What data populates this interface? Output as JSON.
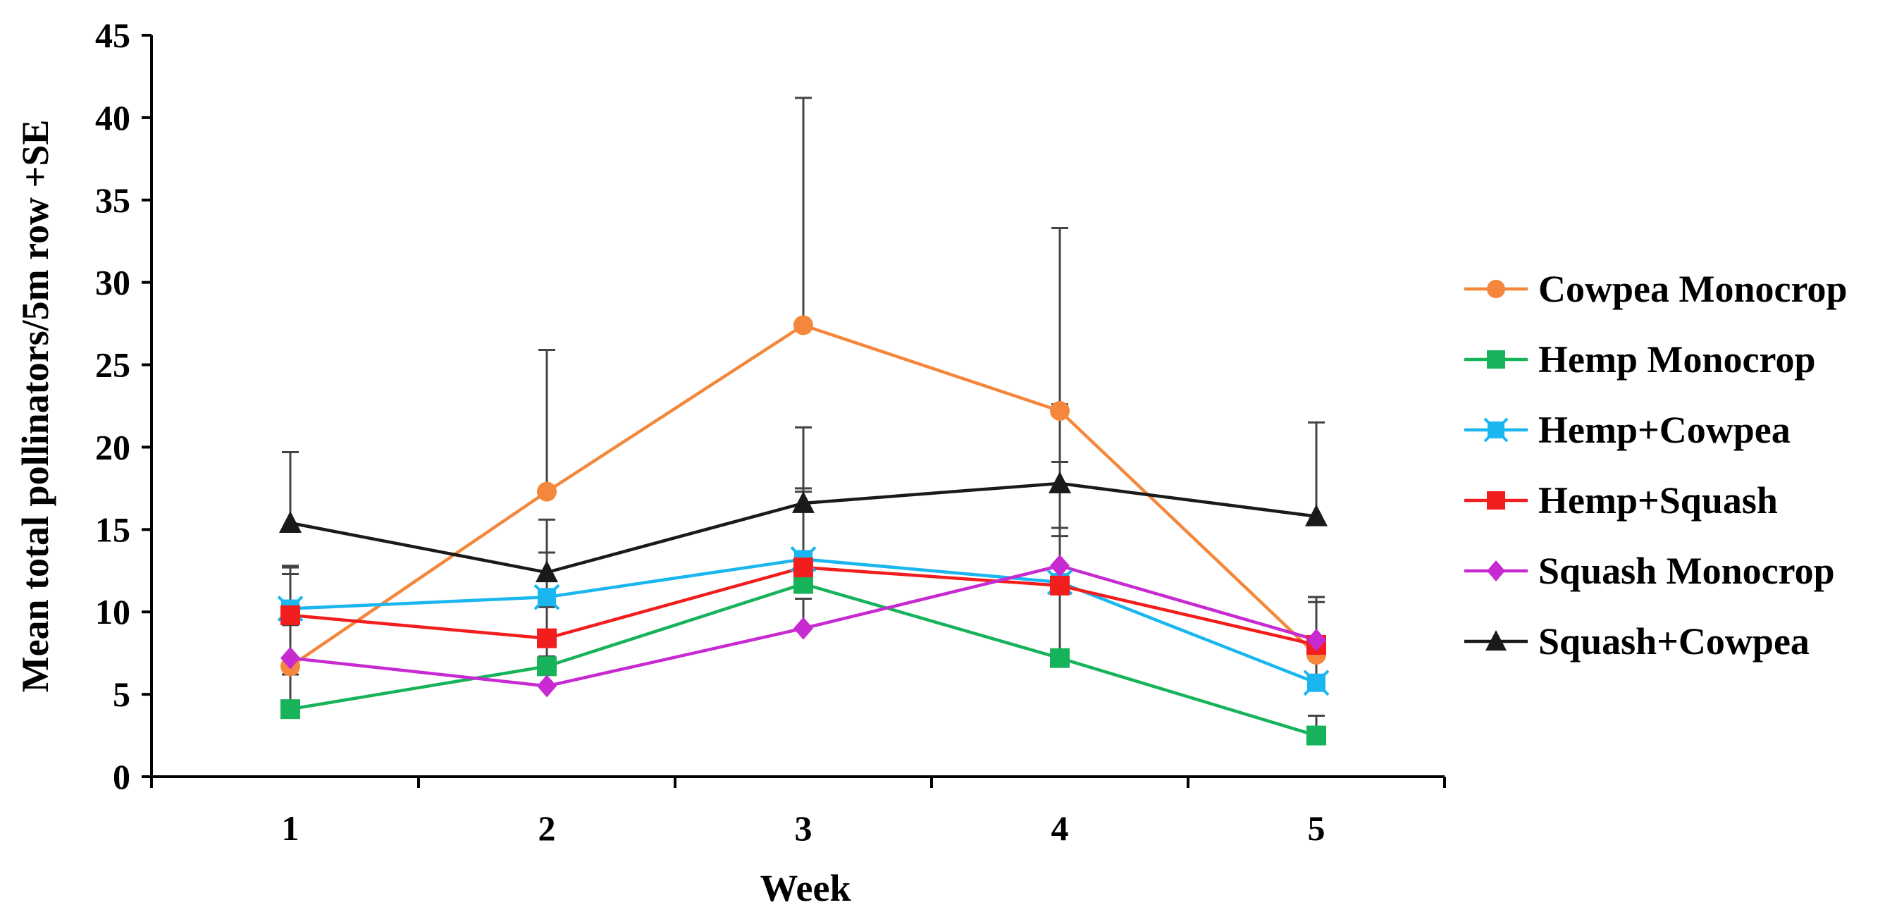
{
  "chart_data": {
    "type": "line",
    "title": "",
    "xlabel": "Week",
    "ylabel": "Mean total pollinators/5m row +SE",
    "categories": [
      "1",
      "2",
      "3",
      "4",
      "5"
    ],
    "ylim": [
      0,
      45
    ],
    "yticks": [
      "0",
      "5",
      "10",
      "15",
      "20",
      "25",
      "30",
      "35",
      "40",
      "45"
    ],
    "legend_position": "right",
    "series": [
      {
        "name": "Cowpea Monocrop",
        "color": "#f4873c",
        "marker": "circle",
        "values": [
          6.7,
          17.3,
          27.4,
          22.2,
          7.4
        ],
        "upper": [
          12.7,
          25.9,
          41.2,
          33.3,
          10.9
        ]
      },
      {
        "name": "Hemp Monocrop",
        "color": "#17b35a",
        "marker": "square",
        "values": [
          4.1,
          6.7,
          11.7,
          7.2,
          2.5
        ],
        "upper": [
          6.2,
          10.3,
          13.1,
          11.2,
          3.7
        ]
      },
      {
        "name": "Hemp+Cowpea",
        "color": "#19b6ef",
        "marker": "star",
        "values": [
          10.2,
          10.9,
          13.2,
          11.8,
          5.7
        ],
        "upper": [
          12.3,
          13.6,
          17.3,
          15.1,
          8.5
        ]
      },
      {
        "name": "Hemp+Squash",
        "color": "#f21d1d",
        "marker": "square",
        "values": [
          9.8,
          8.4,
          12.7,
          11.6,
          8.0
        ],
        "upper": [
          12.8,
          11.3,
          17.5,
          19.1,
          10.9
        ]
      },
      {
        "name": "Squash Monocrop",
        "color": "#c72ad0",
        "marker": "diamond",
        "values": [
          7.2,
          5.5,
          9.0,
          12.8,
          8.3
        ],
        "upper": [
          9.2,
          7.3,
          10.8,
          14.6,
          10.6
        ]
      },
      {
        "name": "Squash+Cowpea",
        "color": "#1a1a1a",
        "marker": "triangle",
        "values": [
          15.4,
          12.4,
          16.6,
          17.8,
          15.8
        ],
        "upper": [
          19.7,
          15.6,
          21.2,
          22.6,
          21.5
        ]
      }
    ]
  }
}
